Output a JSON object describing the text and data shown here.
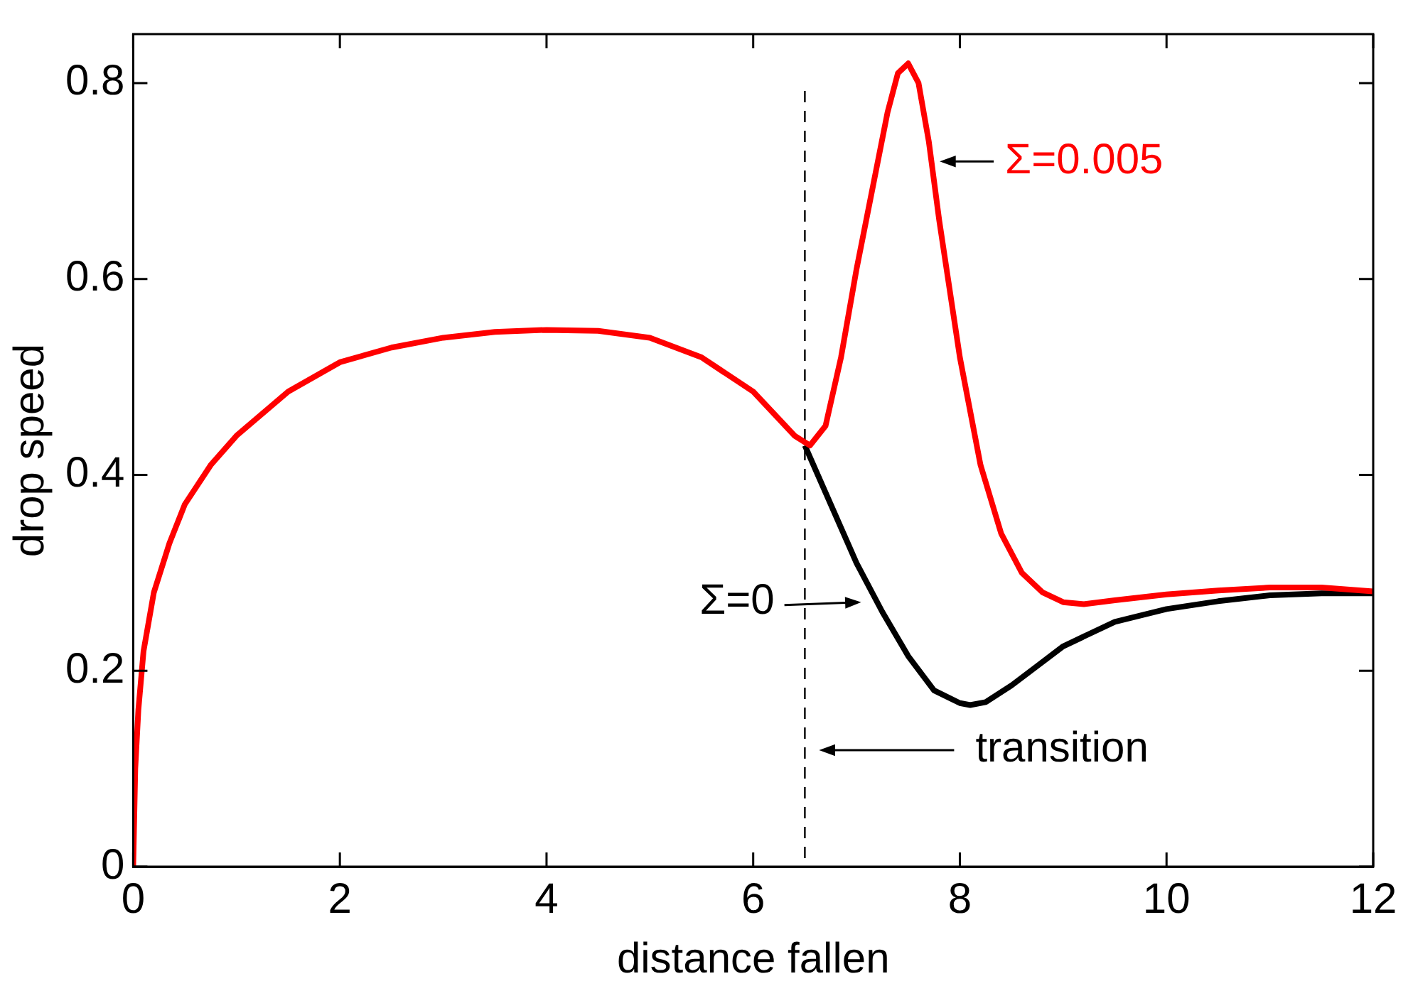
{
  "chart_data": {
    "type": "line",
    "xlabel": "distance fallen",
    "ylabel": "drop speed",
    "xlim": [
      0,
      12
    ],
    "xticks": [
      0,
      2,
      4,
      6,
      8,
      10,
      12
    ],
    "ylim": [
      0,
      0.85
    ],
    "yticks": [
      0,
      0.2,
      0.4,
      0.6,
      0.8
    ],
    "grid": false,
    "legend": false,
    "marker": "none",
    "line_style": "solid",
    "series": [
      {
        "color": "#000000",
        "x": [
          6.5,
          6.75,
          7,
          7.25,
          7.5,
          7.75,
          8,
          8.1,
          8.25,
          8.5,
          8.75,
          9,
          9.5,
          10,
          10.5,
          11,
          11.5,
          12
        ],
        "values": [
          0.43,
          0.37,
          0.31,
          0.26,
          0.215,
          0.18,
          0.167,
          0.165,
          0.168,
          0.185,
          0.205,
          0.225,
          0.25,
          0.263,
          0.271,
          0.277,
          0.279,
          0.279
        ]
      },
      {
        "color": "#ff0000",
        "x": [
          0,
          0.02,
          0.05,
          0.1,
          0.2,
          0.35,
          0.5,
          0.75,
          1,
          1.5,
          2,
          2.5,
          3,
          3.5,
          4,
          4.5,
          5,
          5.5,
          6,
          6.4,
          6.55,
          6.7,
          6.85,
          7,
          7.15,
          7.3,
          7.4,
          7.5,
          7.6,
          7.7,
          7.8,
          8,
          8.2,
          8.4,
          8.6,
          8.8,
          9,
          9.2,
          9.5,
          10,
          10.5,
          11,
          11.5,
          12
        ],
        "values": [
          0,
          0.1,
          0.16,
          0.22,
          0.28,
          0.33,
          0.37,
          0.41,
          0.44,
          0.485,
          0.515,
          0.53,
          0.54,
          0.546,
          0.548,
          0.547,
          0.54,
          0.52,
          0.485,
          0.44,
          0.43,
          0.45,
          0.52,
          0.61,
          0.69,
          0.77,
          0.81,
          0.82,
          0.8,
          0.74,
          0.66,
          0.52,
          0.41,
          0.34,
          0.3,
          0.28,
          0.27,
          0.268,
          0.272,
          0.278,
          0.282,
          0.285,
          0.285,
          0.281
        ]
      }
    ],
    "ref_lines": [
      {
        "axis": "x",
        "value": 6.5,
        "label": "transition",
        "color": "#000000",
        "line_style": "dashed"
      }
    ],
    "annotations": [
      {
        "text": "Σ=0",
        "x": 7.1,
        "y": 0.27
      },
      {
        "text": "Σ=0.005",
        "x": 7.75,
        "y": 0.72
      }
    ]
  }
}
